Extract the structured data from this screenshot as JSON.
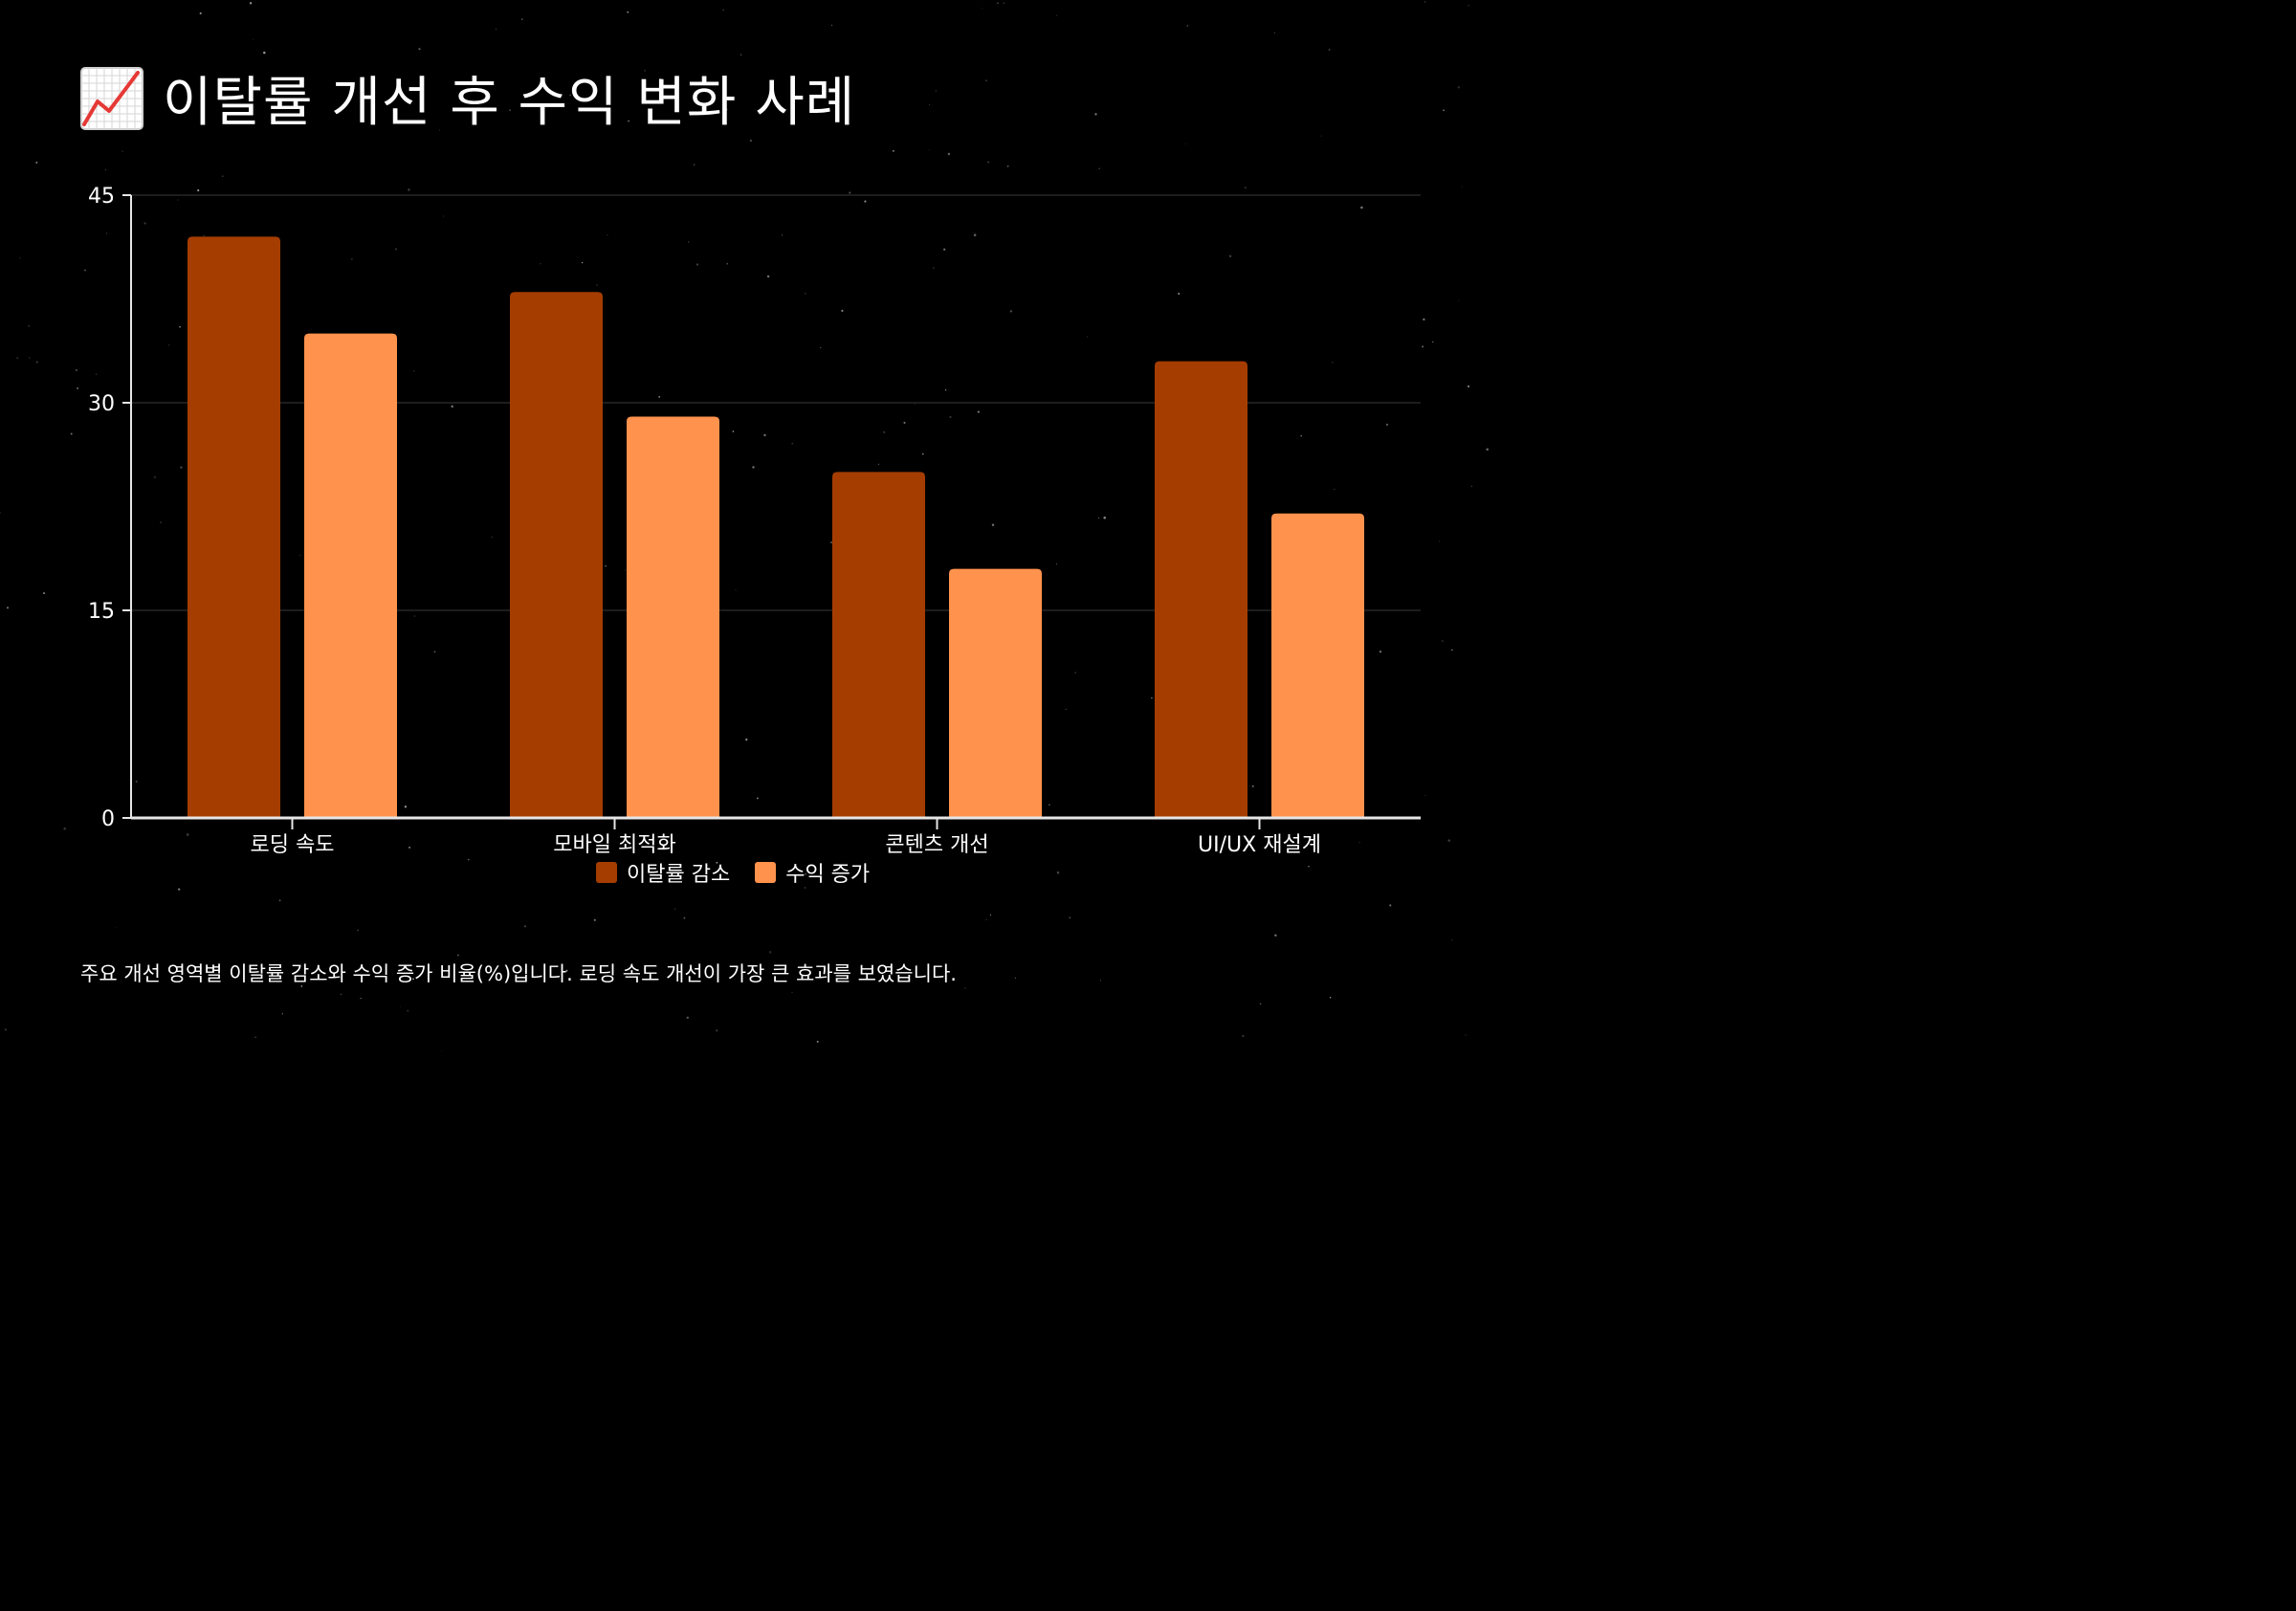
{
  "title": {
    "icon": "chart-increasing-icon",
    "text": "이탈률 개선 후 수익 변화 사례"
  },
  "colors": {
    "background": "#000000",
    "series_1": "#a53d00",
    "series_2": "#ff924d",
    "grid": "#3a3a3a",
    "axis": "#e6e6e6"
  },
  "chart_data": {
    "type": "bar",
    "categories": [
      "로딩 속도",
      "모바일 최적화",
      "콘텐츠 개선",
      "UI/UX 재설계"
    ],
    "series": [
      {
        "name": "이탈률 감소",
        "values": [
          42,
          38,
          25,
          33
        ]
      },
      {
        "name": "수익 증가",
        "values": [
          35,
          29,
          18,
          22
        ]
      }
    ],
    "ylim": [
      0,
      45
    ],
    "yticks": [
      0,
      15,
      30,
      45
    ],
    "grid": true,
    "legend_position": "bottom",
    "xlabel": "",
    "ylabel": ""
  },
  "caption": "주요 개선 영역별 이탈률 감소와 수익 증가 비율(%)입니다. 로딩 속도 개선이 가장 큰 효과를 보였습니다."
}
